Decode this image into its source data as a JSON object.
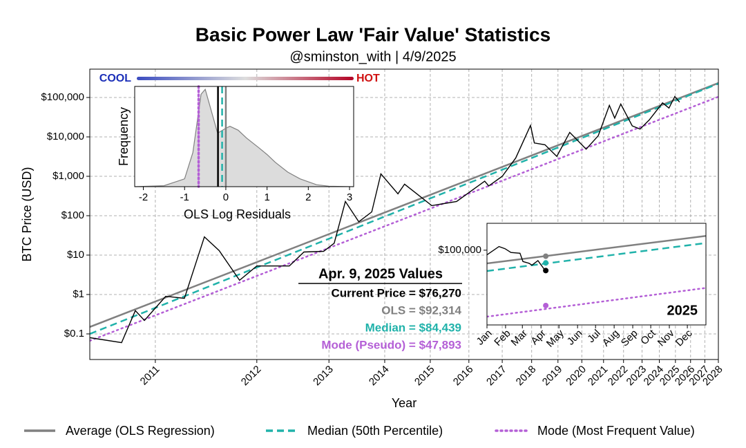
{
  "chart_data": [
    {
      "type": "line",
      "title": "Basic Power Law 'Fair Value' Statistics",
      "subtitle": "@sminston_with  |  4/9/2025",
      "xlabel": "Year",
      "ylabel": "BTC Price (USD)",
      "xscale": "log",
      "yscale": "log",
      "grid": true,
      "legend": "bottom",
      "xlim": [
        560,
        6938
      ],
      "ylim": [
        0.0224,
        524000
      ],
      "xticks": [
        {
          "value": 728,
          "label": "2011"
        },
        {
          "value": 1093,
          "label": "2012"
        },
        {
          "value": 1459,
          "label": "2013"
        },
        {
          "value": 1824,
          "label": "2014"
        },
        {
          "value": 2189,
          "label": "2015"
        },
        {
          "value": 2555,
          "label": "2016"
        },
        {
          "value": 2920,
          "label": "2017"
        },
        {
          "value": 3285,
          "label": "2018"
        },
        {
          "value": 3650,
          "label": "2019"
        },
        {
          "value": 4016,
          "label": "2020"
        },
        {
          "value": 4381,
          "label": "2021"
        },
        {
          "value": 4746,
          "label": "2022"
        },
        {
          "value": 5111,
          "label": "2023"
        },
        {
          "value": 5477,
          "label": "2024"
        },
        {
          "value": 5842,
          "label": "2025"
        },
        {
          "value": 6207,
          "label": "2026"
        },
        {
          "value": 6572,
          "label": "2027"
        },
        {
          "value": 6938,
          "label": "2028"
        }
      ],
      "yticks": [
        {
          "value": 0.1,
          "label": "$0.1"
        },
        {
          "value": 1,
          "label": "$1"
        },
        {
          "value": 10,
          "label": "$10"
        },
        {
          "value": 100,
          "label": "$100"
        },
        {
          "value": 1000,
          "label": "$1,000"
        },
        {
          "value": 10000,
          "label": "$10,000"
        },
        {
          "value": 100000,
          "label": "$100,000"
        }
      ],
      "series": [
        {
          "name": "Average (OLS Regression)",
          "color": "#808080",
          "style": "solid",
          "x": [
            560,
            6938
          ],
          "values": [
            0.15,
            233000
          ]
        },
        {
          "name": "Median (50th Percentile)",
          "color": "#20b2aa",
          "style": "dashed",
          "x": [
            560,
            6938
          ],
          "values": [
            0.1,
            224000
          ]
        },
        {
          "name": "Mode (Most Frequent Value)",
          "color": "#b45fd6",
          "style": "dotted",
          "x": [
            560,
            6938
          ],
          "values": [
            0.067,
            104000
          ]
        },
        {
          "color": "#000000",
          "style": "solid",
          "x": [
            561,
            636,
            672,
            697,
            759,
            818,
            886,
            940,
            1020,
            1093,
            1245,
            1320,
            1428,
            1490,
            1558,
            1644,
            1732,
            1796,
            1923,
            1975,
            2202,
            2432,
            2722,
            2767,
            2920,
            3082,
            3270,
            3321,
            3465,
            3633,
            3826,
            4086,
            4289,
            4484,
            4581,
            4694,
            4914,
            5070,
            5262,
            5549,
            5693,
            5827,
            5939
          ],
          "values": [
            0.08,
            0.06,
            0.39,
            0.22,
            0.9,
            0.8,
            29,
            13,
            2.3,
            5.3,
            5.3,
            12,
            12.5,
            20,
            230,
            70,
            125,
            1150,
            360,
            630,
            180,
            230,
            750,
            570,
            1000,
            2900,
            19500,
            7000,
            6300,
            3200,
            13000,
            4900,
            10700,
            63000,
            30000,
            68000,
            19000,
            15800,
            27000,
            73000,
            54000,
            106000,
            76270
          ]
        }
      ]
    },
    {
      "type": "area",
      "xlabel": "OLS Log Residuals",
      "ylabel": "Frequency",
      "colorbar": {
        "low_label": "COOL",
        "high_label": "HOT"
      },
      "xlim": [
        -2.21,
        3.1
      ],
      "ylim": [
        0,
        1.03
      ],
      "xticks": [
        -2,
        -1,
        0,
        1,
        2,
        3
      ],
      "x": [
        -2.2,
        -1.5,
        -1.0,
        -0.8,
        -0.6,
        -0.5,
        -0.4,
        -0.2,
        0,
        0.1,
        0.3,
        0.5,
        0.8,
        1.0,
        1.2,
        1.5,
        1.8,
        2.2,
        2.5,
        3.1
      ],
      "values": [
        0,
        0.01,
        0.08,
        0.35,
        0.95,
        1.0,
        0.85,
        0.55,
        0.6,
        0.62,
        0.58,
        0.5,
        0.4,
        0.33,
        0.25,
        0.15,
        0.08,
        0.02,
        0.005,
        0
      ],
      "color": "#dcdcdc",
      "vlines": [
        {
          "value": -0.66,
          "color": "#b45fd6",
          "style": "dotted"
        },
        {
          "value": 0,
          "color": "#808080",
          "style": "solid"
        },
        {
          "value": -0.09,
          "color": "#20b2aa",
          "style": "dashed"
        },
        {
          "value": -0.19,
          "color": "#000000",
          "style": "solid"
        }
      ]
    },
    {
      "type": "line",
      "annotation": "2025",
      "yscale": "log",
      "xlim": [
        0,
        365
      ],
      "ylim": [
        37000,
        143000
      ],
      "xticks": [
        {
          "value": 0,
          "label": "Jan"
        },
        {
          "value": 31,
          "label": "Feb"
        },
        {
          "value": 59,
          "label": "Mar"
        },
        {
          "value": 90,
          "label": "Apr"
        },
        {
          "value": 120,
          "label": "May"
        },
        {
          "value": 151,
          "label": "Jun"
        },
        {
          "value": 181,
          "label": "Jul"
        },
        {
          "value": 212,
          "label": "Aug"
        },
        {
          "value": 243,
          "label": "Sep"
        },
        {
          "value": 273,
          "label": "Oct"
        },
        {
          "value": 304,
          "label": "Nov"
        },
        {
          "value": 334,
          "label": "Dec"
        }
      ],
      "yticks": [
        {
          "value": 100000,
          "label": "$100,000"
        }
      ],
      "series": [
        {
          "color": "#808080",
          "style": "solid",
          "x": [
            0,
            365
          ],
          "values": [
            83900,
            121000
          ]
        },
        {
          "color": "#20b2aa",
          "style": "dashed",
          "x": [
            0,
            365
          ],
          "values": [
            75800,
            110000
          ]
        },
        {
          "color": "#b45fd6",
          "style": "dotted",
          "x": [
            0,
            365
          ],
          "values": [
            41300,
            60500
          ]
        },
        {
          "color": "#000000",
          "style": "solid",
          "x": [
            0,
            20,
            30,
            40,
            55,
            60,
            70,
            75,
            85,
            95,
            98
          ],
          "values": [
            94000,
            105000,
            102000,
            97000,
            96000,
            86000,
            84000,
            82000,
            87000,
            78000,
            76270
          ]
        }
      ],
      "points_title": "Apr. 9, 2025 Values",
      "points": {
        "x": [
          98,
          98,
          98,
          98
        ],
        "values": [
          76270,
          92314,
          84439,
          47893
        ],
        "value_labels": [
          "Current Price = $76,270",
          "OLS = $92,314",
          "Median = $84,439",
          "Mode (Pseudo) = $47,893"
        ],
        "colors": [
          "#000000",
          "#808080",
          "#20b2aa",
          "#b45fd6"
        ]
      }
    }
  ]
}
